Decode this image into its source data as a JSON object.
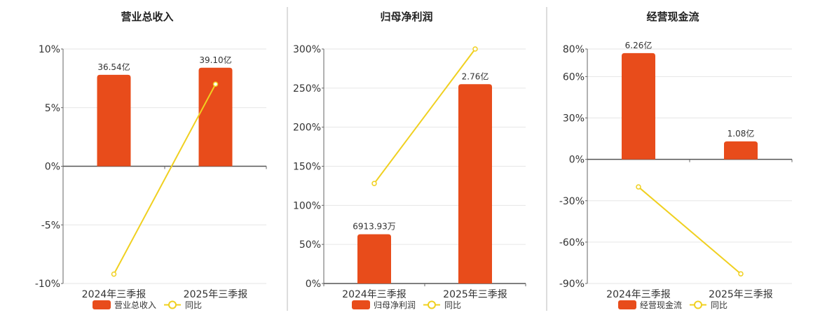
{
  "colors": {
    "bar": "#e84c1b",
    "line": "#f0d020",
    "marker_fill": "#ffffff"
  },
  "chart_data": [
    {
      "type": "bar",
      "title": "营业总收入",
      "categories": [
        "2024年三季报",
        "2025年三季报"
      ],
      "series": [
        {
          "name": "营业总收入",
          "kind": "bar",
          "values": [
            7.8,
            8.4
          ],
          "data_labels": [
            "36.54亿",
            "39.10亿"
          ]
        },
        {
          "name": "同比",
          "kind": "line",
          "values": [
            -9.2,
            7.0
          ]
        }
      ],
      "ylim": [
        -10,
        10
      ],
      "yticks": [
        10,
        5,
        0,
        -5,
        -10
      ],
      "ytick_labels": [
        "10%",
        "5%",
        "0%",
        "-5%",
        "-10%"
      ],
      "legend": [
        "营业总收入",
        "同比"
      ],
      "legend_position": "bottom",
      "grid": true
    },
    {
      "type": "bar",
      "title": "归母净利润",
      "categories": [
        "2024年三季报",
        "2025年三季报"
      ],
      "series": [
        {
          "name": "归母净利润",
          "kind": "bar",
          "values": [
            63,
            255
          ],
          "data_labels": [
            "6913.93万",
            "2.76亿"
          ]
        },
        {
          "name": "同比",
          "kind": "line",
          "values": [
            128,
            300
          ]
        }
      ],
      "ylim": [
        0,
        300
      ],
      "yticks": [
        300,
        250,
        200,
        150,
        100,
        50,
        0
      ],
      "ytick_labels": [
        "300%",
        "250%",
        "200%",
        "150%",
        "100%",
        "50%",
        "0%"
      ],
      "legend": [
        "归母净利润",
        "同比"
      ],
      "legend_position": "bottom",
      "grid": true
    },
    {
      "type": "bar",
      "title": "经营现金流",
      "categories": [
        "2024年三季报",
        "2025年三季报"
      ],
      "series": [
        {
          "name": "经营现金流",
          "kind": "bar",
          "values": [
            77,
            13
          ],
          "data_labels": [
            "6.26亿",
            "1.08亿"
          ]
        },
        {
          "name": "同比",
          "kind": "line",
          "values": [
            -20,
            -83
          ]
        }
      ],
      "ylim": [
        -90,
        80
      ],
      "yticks": [
        80,
        60,
        30,
        0,
        -30,
        -60,
        -90
      ],
      "ytick_labels": [
        "80%",
        "60%",
        "30%",
        "0%",
        "-30%",
        "-60%",
        "-90%"
      ],
      "legend": [
        "经营现金流",
        "同比"
      ],
      "legend_position": "bottom",
      "grid": true
    }
  ]
}
